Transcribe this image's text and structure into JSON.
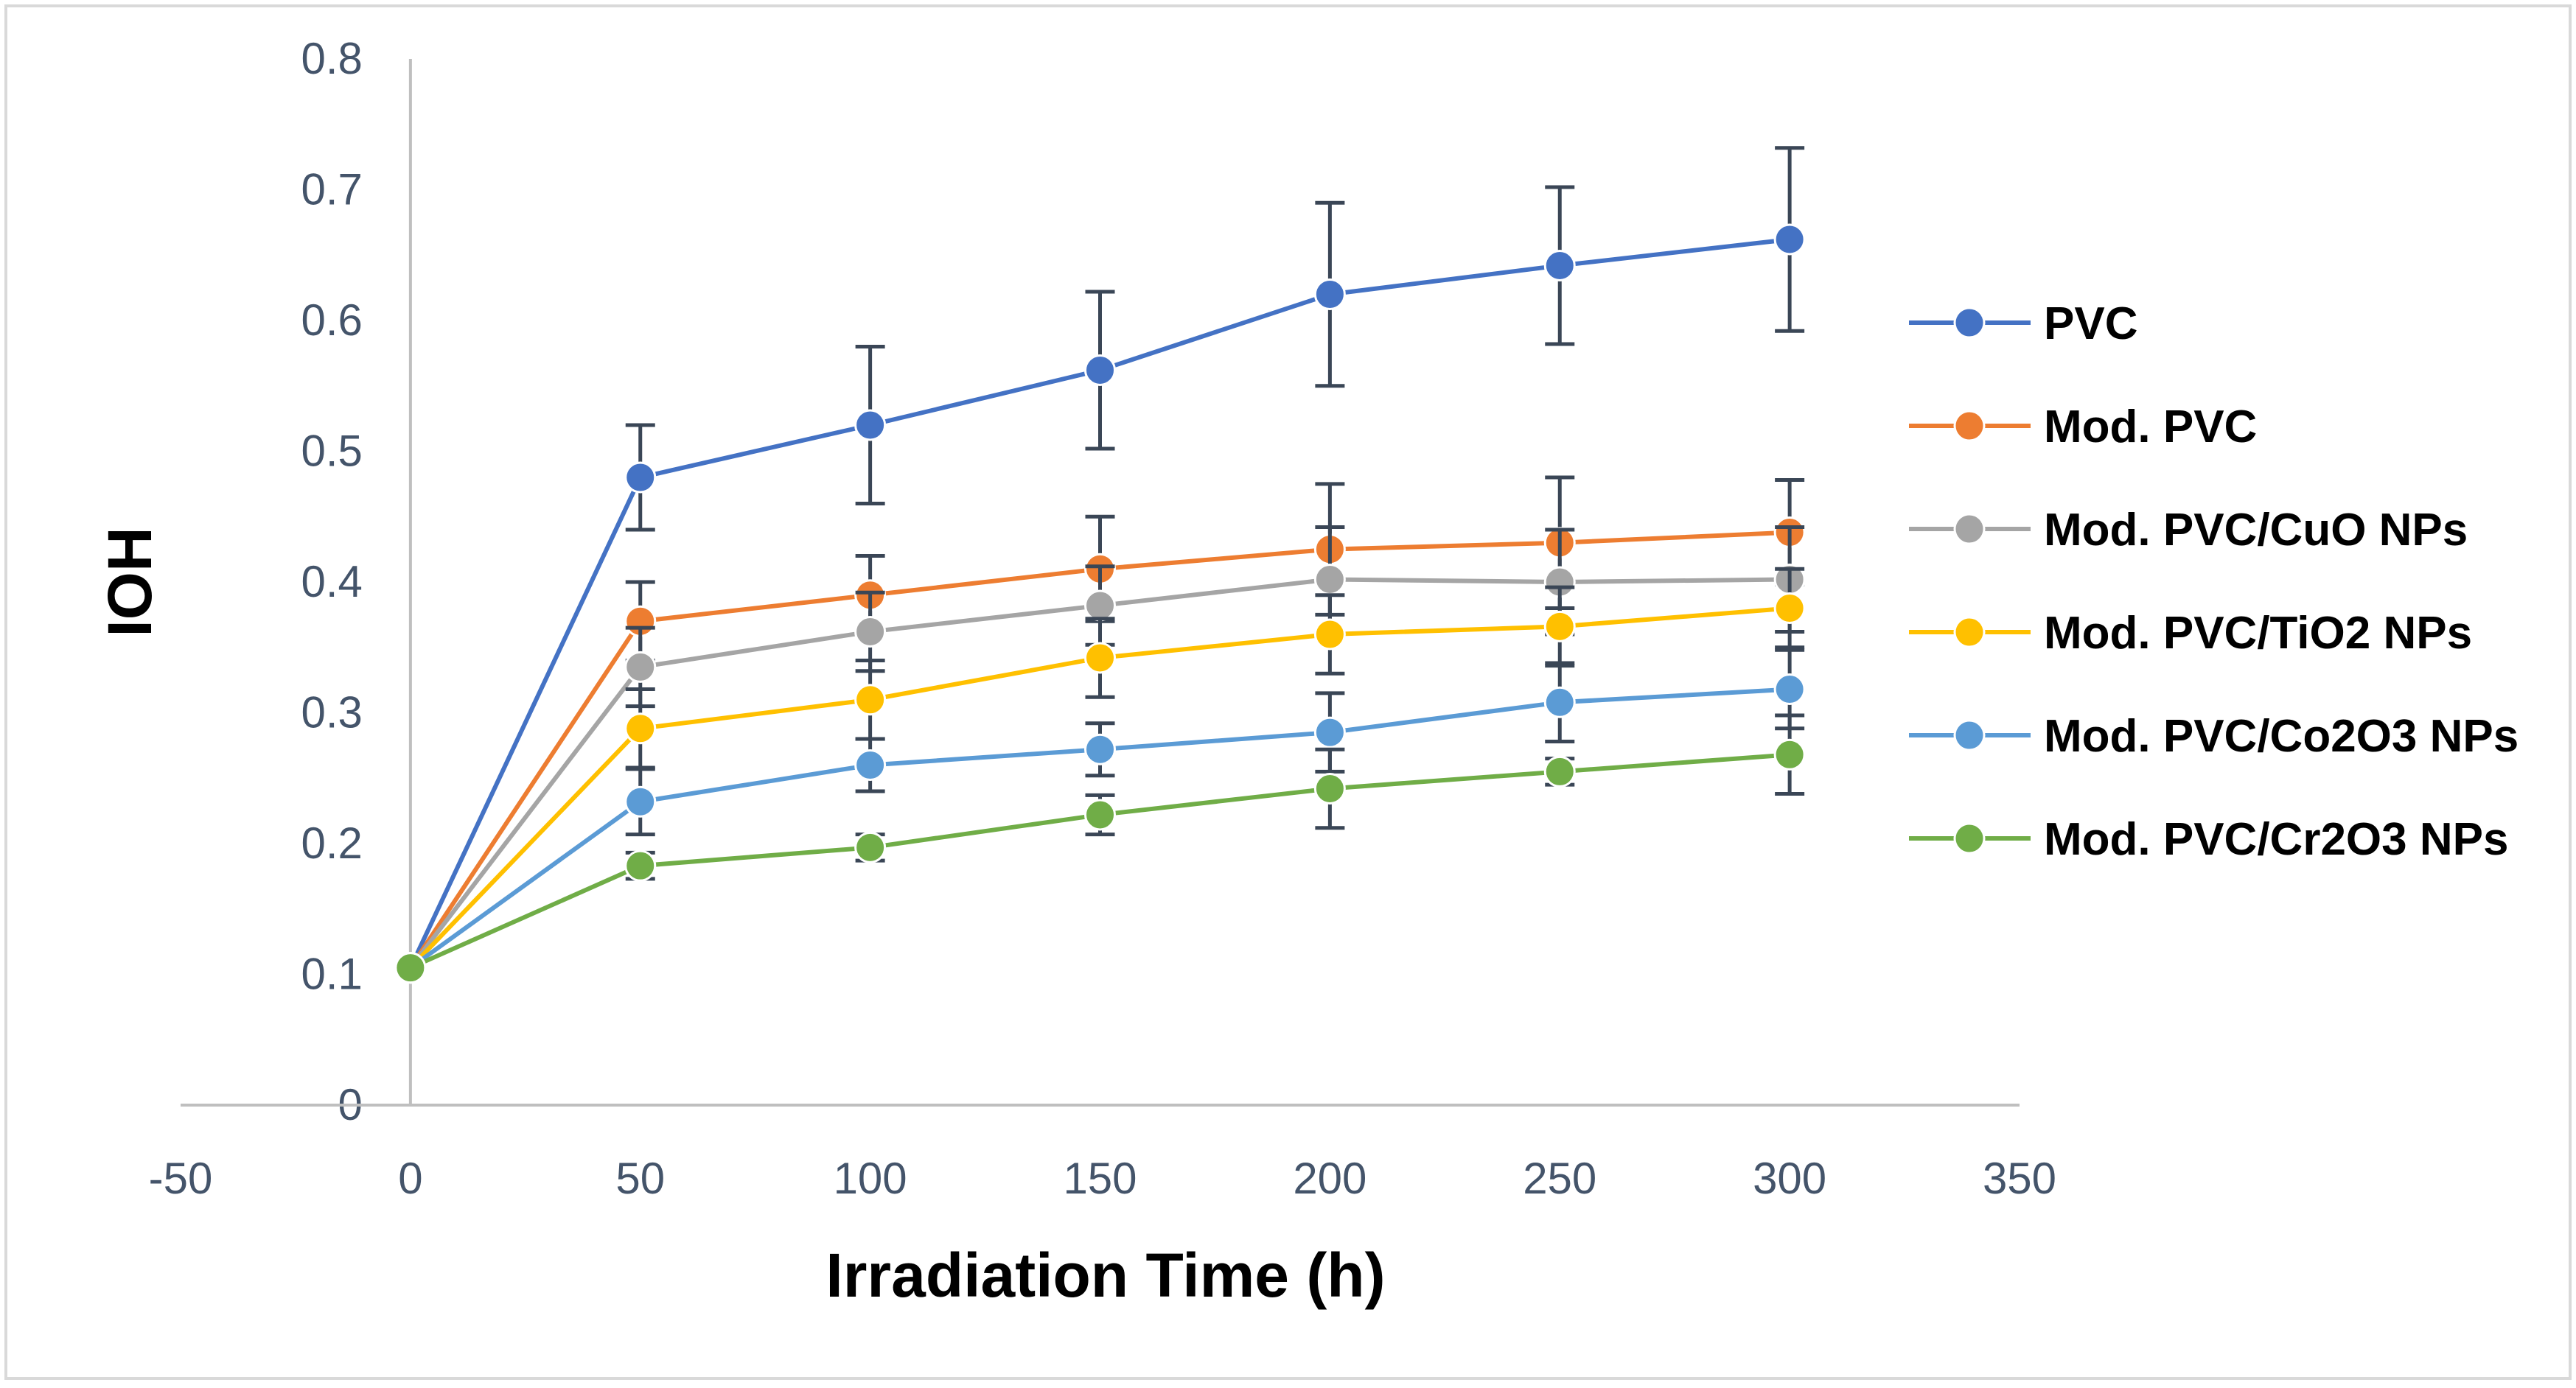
{
  "chart_data": {
    "type": "line",
    "title": "",
    "xlabel": "Irradiation Time (h)",
    "ylabel": "IOH",
    "xlim": [
      -50,
      350
    ],
    "ylim": [
      0,
      0.8
    ],
    "xticks": [
      -50,
      0,
      50,
      100,
      150,
      200,
      250,
      300,
      350
    ],
    "yticks": [
      0,
      0.1,
      0.2,
      0.3,
      0.4,
      0.5,
      0.6,
      0.7,
      0.8
    ],
    "x": [
      0,
      50,
      100,
      150,
      200,
      250,
      300
    ],
    "grid": false,
    "legend_position": "right",
    "series": [
      {
        "name": "PVC",
        "color": "#4472c4",
        "values": [
          0.105,
          0.48,
          0.52,
          0.562,
          0.62,
          0.642,
          0.662
        ],
        "errors": [
          0,
          0.04,
          0.06,
          0.06,
          0.07,
          0.06,
          0.07
        ]
      },
      {
        "name": "Mod. PVC",
        "color": "#ed7d31",
        "values": [
          0.105,
          0.37,
          0.39,
          0.41,
          0.425,
          0.43,
          0.438
        ],
        "errors": [
          0,
          0.03,
          0.03,
          0.04,
          0.05,
          0.05,
          0.04
        ]
      },
      {
        "name": "Mod. PVC/CuO NPs",
        "color": "#a5a5a5",
        "values": [
          0.105,
          0.335,
          0.362,
          0.382,
          0.402,
          0.4,
          0.402
        ],
        "errors": [
          0,
          0.03,
          0.03,
          0.03,
          0.04,
          0.04,
          0.04
        ]
      },
      {
        "name": "Mod. PVC/TiO2 NPs",
        "color": "#ffc000",
        "values": [
          0.105,
          0.288,
          0.31,
          0.342,
          0.36,
          0.366,
          0.38
        ],
        "errors": [
          0,
          0.03,
          0.03,
          0.03,
          0.03,
          0.03,
          0.03
        ]
      },
      {
        "name": "Mod. PVC/Co2O3 NPs",
        "color": "#5b9bd5",
        "values": [
          0.105,
          0.232,
          0.26,
          0.272,
          0.285,
          0.308,
          0.318
        ],
        "errors": [
          0,
          0.025,
          0.02,
          0.02,
          0.03,
          0.03,
          0.03
        ]
      },
      {
        "name": "Mod. PVC/Cr2O3 NPs",
        "color": "#70ad47",
        "values": [
          0.105,
          0.183,
          0.197,
          0.222,
          0.242,
          0.255,
          0.268
        ],
        "errors": [
          0,
          0.01,
          0.01,
          0.015,
          0.03,
          0.01,
          0.03
        ]
      }
    ]
  }
}
